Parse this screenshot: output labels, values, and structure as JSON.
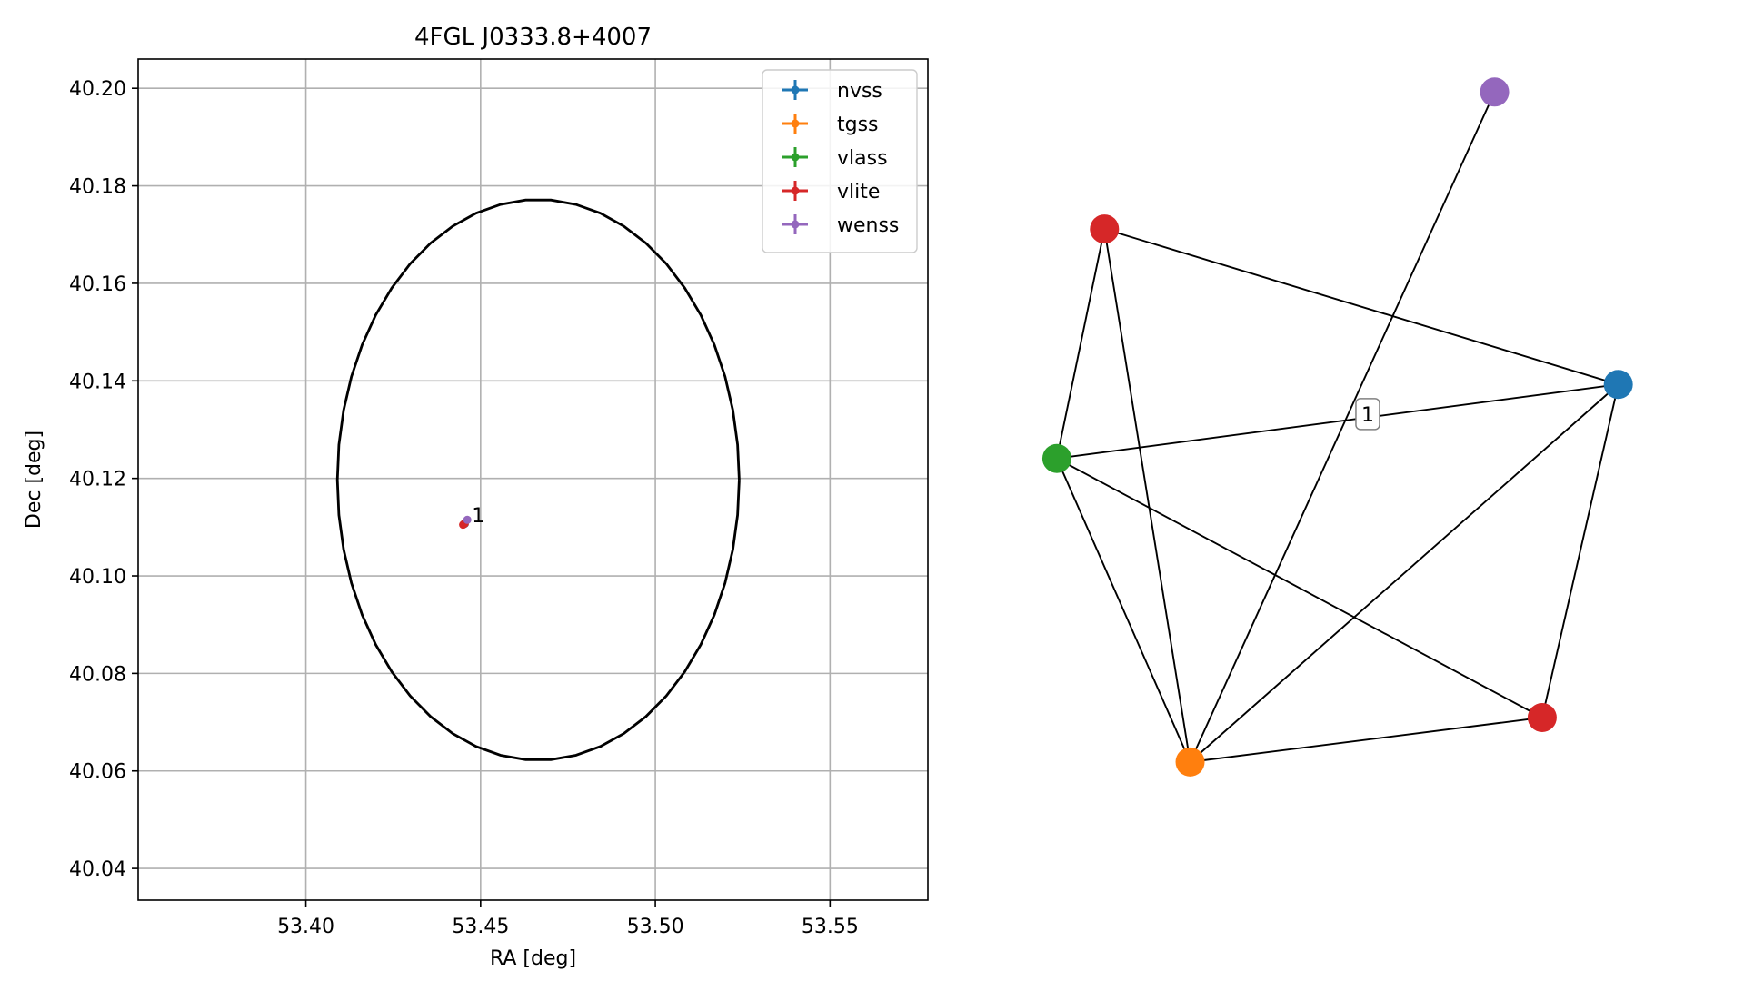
{
  "chart_data": [
    {
      "type": "scatter",
      "title": "4FGL J0333.8+4007",
      "xlabel": "RA [deg]",
      "ylabel": "Dec [deg]",
      "xlim": [
        53.352,
        53.578
      ],
      "ylim": [
        40.0335,
        40.206
      ],
      "x_ticks": [
        53.4,
        53.45,
        53.5,
        53.55
      ],
      "y_ticks": [
        40.04,
        40.06,
        40.08,
        40.1,
        40.12,
        40.14,
        40.16,
        40.18,
        40.2
      ],
      "x_tick_labels": [
        "53.40",
        "53.45",
        "53.50",
        "53.55"
      ],
      "y_tick_labels": [
        "40.04",
        "40.06",
        "40.08",
        "40.10",
        "40.12",
        "40.14",
        "40.16",
        "40.18",
        "40.20"
      ],
      "grid": true,
      "legend_position": "top-right",
      "legend_style": "errorbar",
      "series": [
        {
          "name": "nvss",
          "color": "#1f77b4",
          "x": [
            53.4455
          ],
          "y": [
            40.1107
          ]
        },
        {
          "name": "tgss",
          "color": "#ff7f0e",
          "x": [
            53.4455
          ],
          "y": [
            40.1108
          ]
        },
        {
          "name": "vlass",
          "color": "#2ca02c",
          "x": [
            53.4452
          ],
          "y": [
            40.1106
          ]
        },
        {
          "name": "vlite",
          "color": "#d62728",
          "x": [
            53.445,
            53.4454
          ],
          "y": [
            40.1105,
            40.1107
          ]
        },
        {
          "name": "wenss",
          "color": "#9467bd",
          "x": [
            53.4462
          ],
          "y": [
            40.1115
          ]
        }
      ],
      "ellipse": {
        "center": [
          53.4665,
          40.1197
        ],
        "half_width": 0.0575,
        "half_height": 0.0575,
        "color": "#000000"
      },
      "annotations": [
        {
          "text": "1",
          "x": 53.4475,
          "y": 40.1125
        }
      ]
    },
    {
      "type": "network",
      "nodes": [
        {
          "id": "wenss",
          "color": "#9467bd",
          "x": 0.72,
          "y": 0.98
        },
        {
          "id": "vlite_a",
          "color": "#d62728",
          "x": 0.105,
          "y": 0.795
        },
        {
          "id": "nvss",
          "color": "#1f77b4",
          "x": 0.915,
          "y": 0.585
        },
        {
          "id": "vlass",
          "color": "#2ca02c",
          "x": 0.03,
          "y": 0.485
        },
        {
          "id": "vlite_b",
          "color": "#d62728",
          "x": 0.795,
          "y": 0.135
        },
        {
          "id": "tgss",
          "color": "#ff7f0e",
          "x": 0.24,
          "y": 0.075
        }
      ],
      "edges": [
        [
          "vlite_a",
          "nvss"
        ],
        [
          "vlite_a",
          "vlass"
        ],
        [
          "vlite_a",
          "tgss"
        ],
        [
          "wenss",
          "tgss"
        ],
        [
          "nvss",
          "vlass"
        ],
        [
          "nvss",
          "tgss"
        ],
        [
          "nvss",
          "vlite_b"
        ],
        [
          "vlass",
          "tgss"
        ],
        [
          "vlass",
          "vlite_b"
        ],
        [
          "tgss",
          "vlite_b"
        ]
      ],
      "label": {
        "text": "1",
        "x": 0.52,
        "y": 0.545
      }
    }
  ]
}
